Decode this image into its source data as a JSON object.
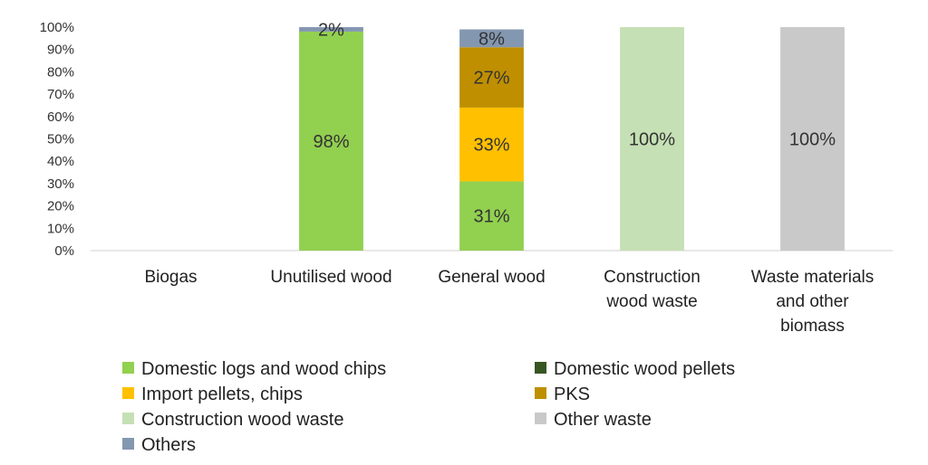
{
  "chart_data": {
    "type": "bar",
    "stacked": true,
    "ylim": [
      0,
      100
    ],
    "yticks": [
      "0%",
      "10%",
      "20%",
      "30%",
      "40%",
      "50%",
      "60%",
      "70%",
      "80%",
      "90%",
      "100%"
    ],
    "categories": [
      [
        "Biogas"
      ],
      [
        "Unutilised wood"
      ],
      [
        "General wood"
      ],
      [
        "Construction",
        "wood waste"
      ],
      [
        "Waste materials",
        "and other",
        "biomass"
      ]
    ],
    "series": [
      {
        "name": "Domestic logs and wood chips",
        "color": "#92d050",
        "values": [
          0,
          98,
          31,
          0,
          0
        ],
        "labels": [
          "",
          "98%",
          "31%",
          "",
          ""
        ]
      },
      {
        "name": "Domestic wood pellets",
        "color": "#375623",
        "values": [
          0,
          0,
          0,
          0,
          0
        ],
        "labels": [
          "",
          "",
          "",
          "",
          ""
        ]
      },
      {
        "name": "Import pellets, chips",
        "color": "#ffc000",
        "values": [
          0,
          0,
          33,
          0,
          0
        ],
        "labels": [
          "",
          "",
          "33%",
          "",
          ""
        ]
      },
      {
        "name": "PKS",
        "color": "#bf8f00",
        "values": [
          0,
          0,
          27,
          0,
          0
        ],
        "labels": [
          "",
          "",
          "27%",
          "",
          ""
        ]
      },
      {
        "name": "Construction wood waste",
        "color": "#c5e0b4",
        "values": [
          0,
          0,
          0,
          100,
          0
        ],
        "labels": [
          "",
          "",
          "",
          "100%",
          ""
        ]
      },
      {
        "name": "Other waste",
        "color": "#c9c9c9",
        "values": [
          0,
          0,
          0,
          0,
          100
        ],
        "labels": [
          "",
          "",
          "",
          "",
          "100%"
        ]
      },
      {
        "name": "Others",
        "color": "#8497b0",
        "values": [
          0,
          2,
          8,
          0,
          0
        ],
        "labels": [
          "",
          "2%",
          "8%",
          "",
          ""
        ]
      }
    ],
    "legend_position": "bottom",
    "grid": false
  }
}
